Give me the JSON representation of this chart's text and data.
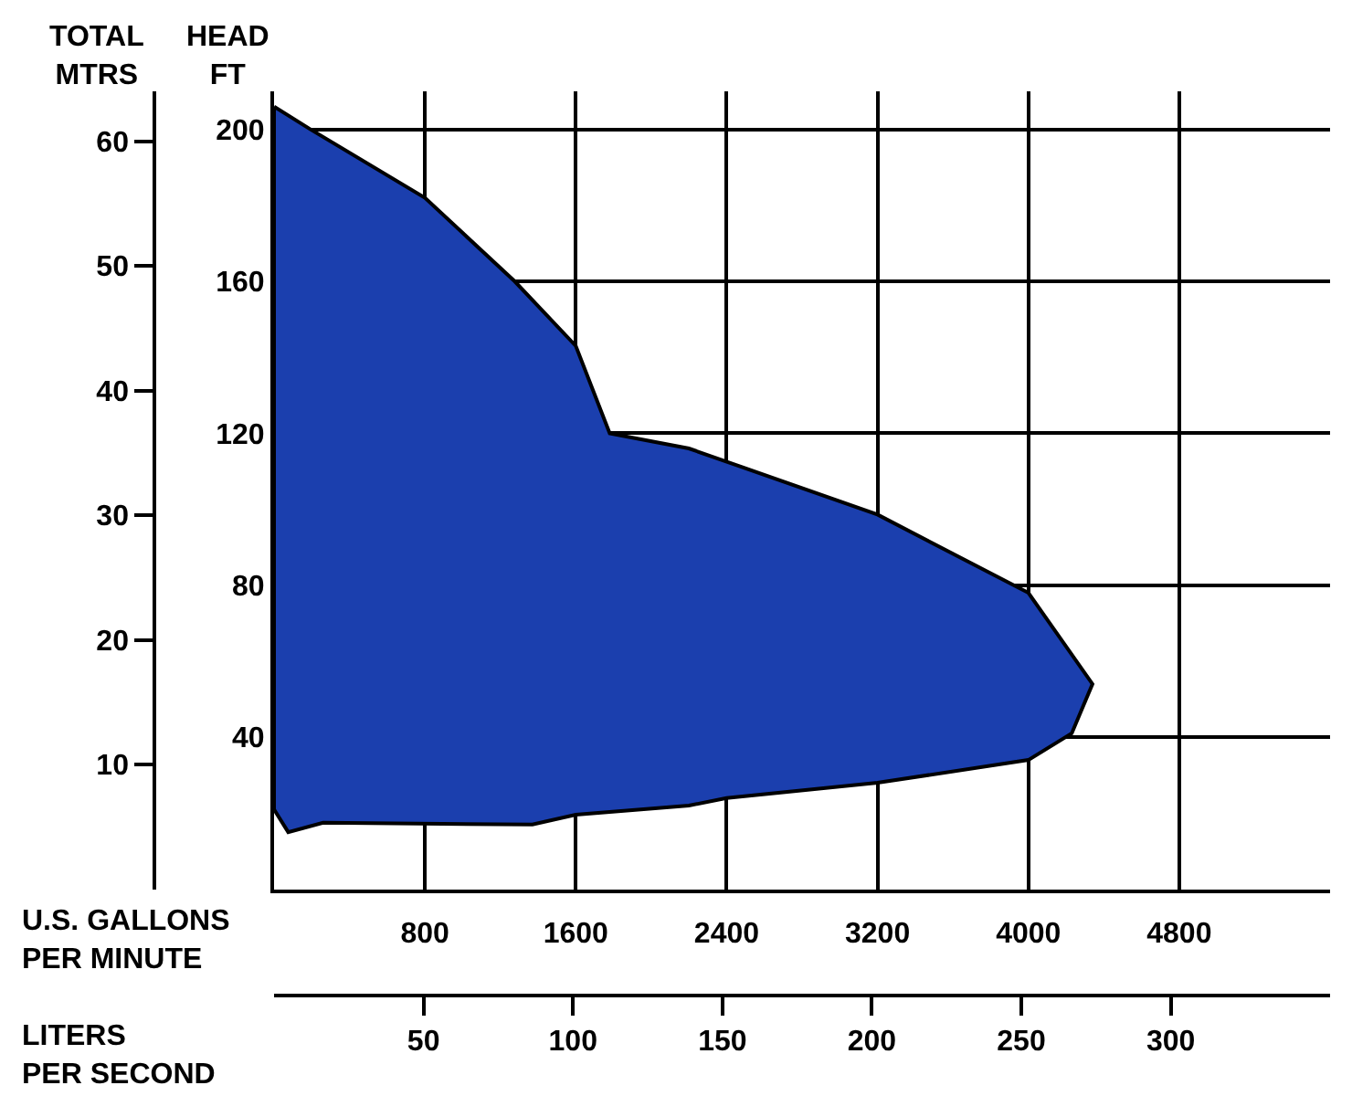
{
  "chart_data": {
    "type": "area",
    "xlabel": "U.S. GALLONS\nPER MINUTE",
    "x2label": "LITERS\nPER SECOND",
    "ylabel": "HEAD\nFT",
    "y2label": "TOTAL\nMTRS",
    "x": [
      0,
      193,
      800,
      1276,
      1600,
      1780,
      2200,
      3200,
      4000,
      4340,
      4230,
      4000,
      3200,
      2400,
      2200,
      1600,
      1370,
      260,
      75,
      0,
      0
    ],
    "series": [
      {
        "color": "#1b3fae",
        "values": [
          206,
          200,
          182,
          160,
          143,
          120,
          116,
          98.6,
          78,
          54,
          41,
          34,
          28,
          24,
          22,
          19.6,
          17,
          17.5,
          15,
          21,
          206
        ]
      }
    ],
    "xlim": [
      0,
      5600
    ],
    "xticks": [
      800,
      1600,
      2400,
      3200,
      4000,
      4800
    ],
    "x2lim": [
      0,
      353.3
    ],
    "x2ticks": [
      50,
      100,
      150,
      200,
      250,
      300
    ],
    "ylim": [
      0,
      210
    ],
    "yticks": [
      40,
      80,
      120,
      160,
      200
    ],
    "y2lim": [
      0,
      64.0
    ],
    "y2ticks": [
      10,
      20,
      30,
      40,
      50,
      60
    ],
    "grid": true
  }
}
